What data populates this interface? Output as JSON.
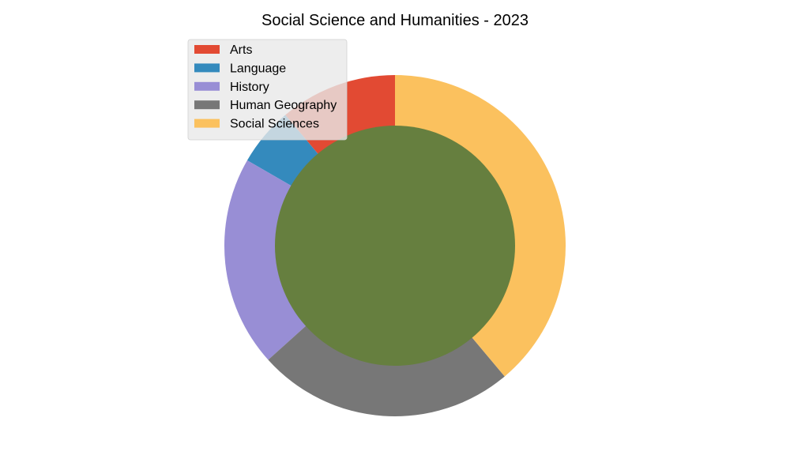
{
  "chart_data": {
    "type": "pie",
    "title": "Social Science and Humanities - 2023",
    "categories": [
      "Arts",
      "Language",
      "History",
      "Human Geography",
      "Social Sciences"
    ],
    "values": [
      10,
      5,
      18,
      22,
      35
    ],
    "colors": [
      "#E24A33",
      "#348ABD",
      "#988ED5",
      "#777777",
      "#FBC15E"
    ],
    "start_angle_deg": 90,
    "direction": "counterclockwise",
    "center_color": "#667F3F",
    "legend_position": "upper-left",
    "legend_background": "#E8E8E8"
  }
}
